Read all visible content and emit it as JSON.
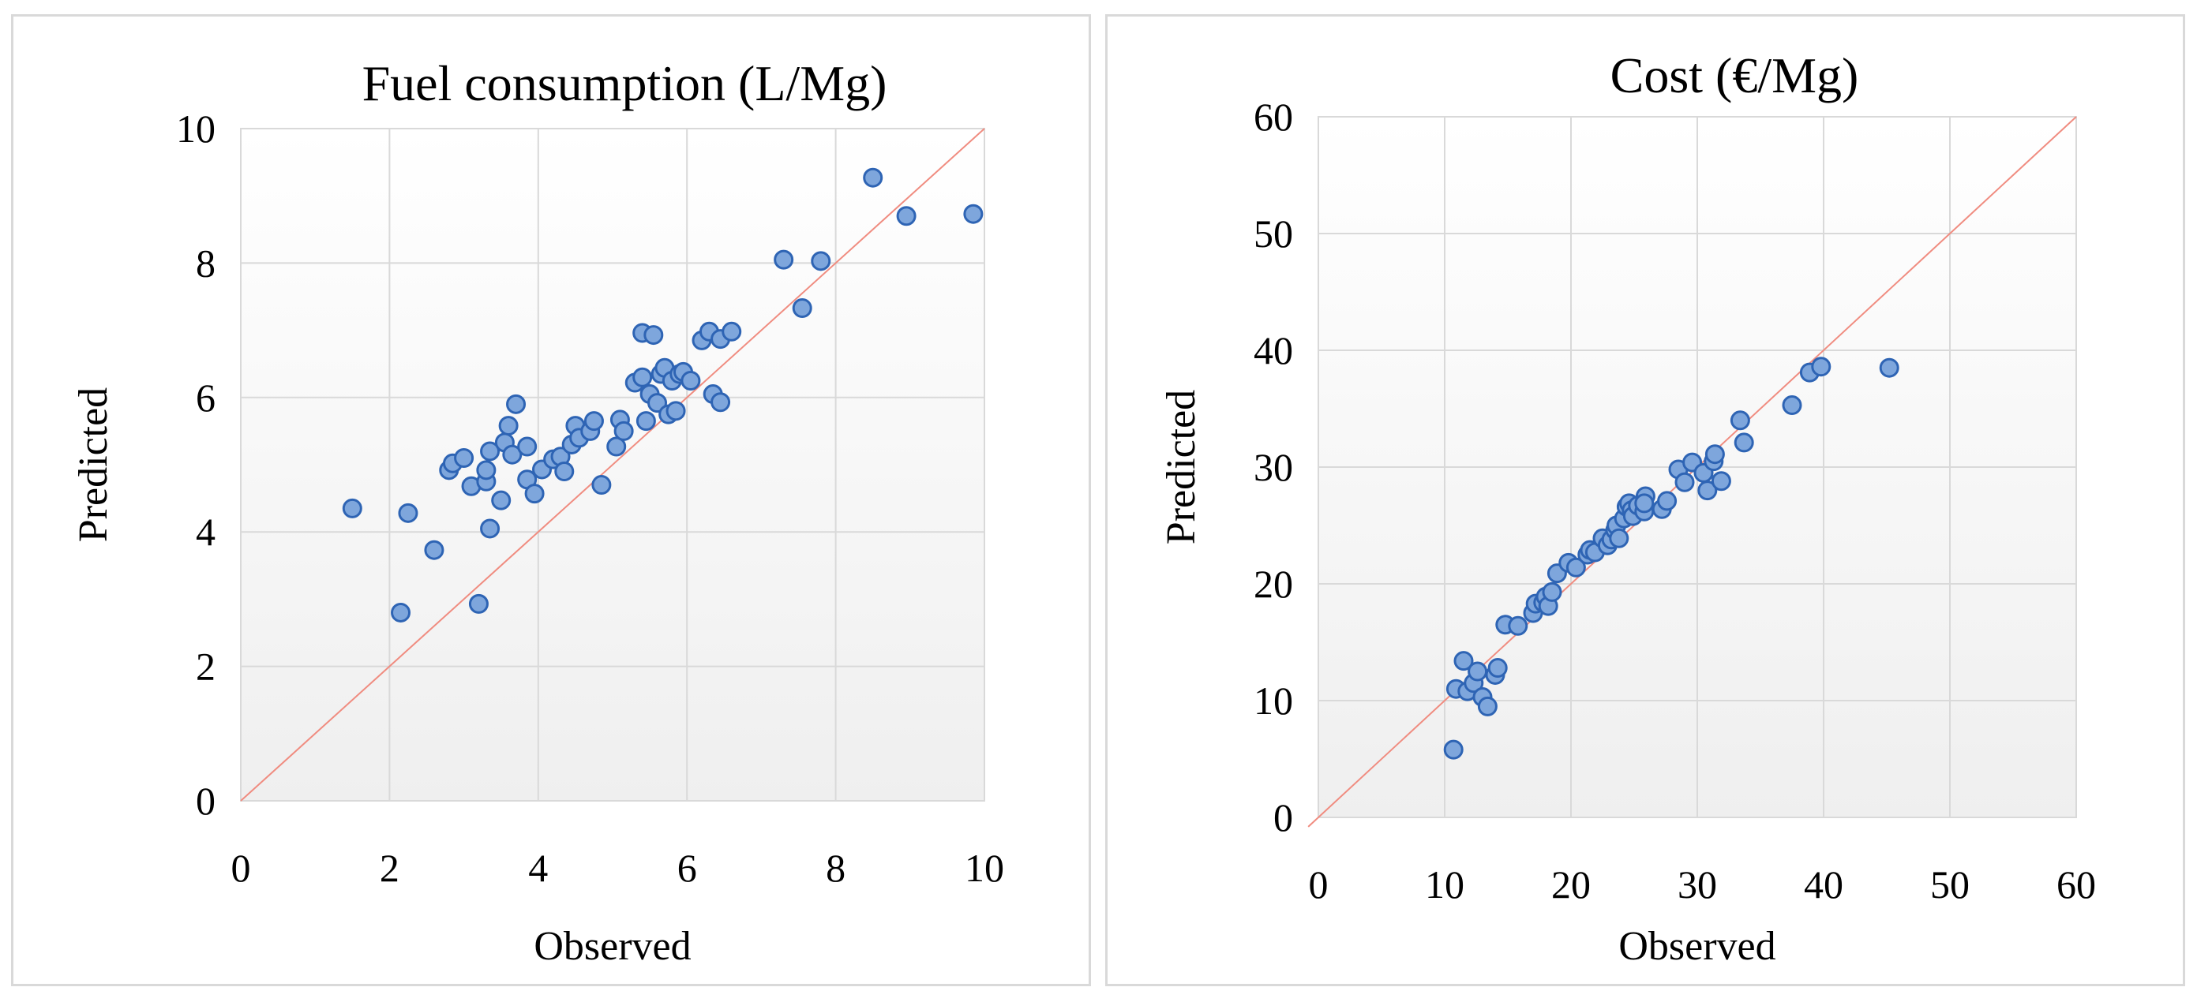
{
  "colors": {
    "point_fill": "#7ea6dc",
    "point_stroke": "#2e64b4",
    "identity_line": "#f08c80",
    "grid": "#d9d9d9"
  },
  "chart_data": [
    {
      "type": "scatter",
      "title": "Fuel consumption (L/Mg)",
      "xlabel": "Observed",
      "ylabel": "Predicted",
      "xlim": [
        0,
        10
      ],
      "ylim": [
        0,
        10
      ],
      "xticks": [
        "0",
        "2",
        "4",
        "6",
        "8",
        "10"
      ],
      "yticks": [
        "0",
        "2",
        "4",
        "6",
        "8",
        "10"
      ],
      "grid": true,
      "reference_line": "y = x",
      "points": [
        [
          1.5,
          4.35
        ],
        [
          2.15,
          2.8
        ],
        [
          2.25,
          4.28
        ],
        [
          2.6,
          3.73
        ],
        [
          2.8,
          4.92
        ],
        [
          2.85,
          5.02
        ],
        [
          3.0,
          5.1
        ],
        [
          3.1,
          4.68
        ],
        [
          3.2,
          2.93
        ],
        [
          3.3,
          4.75
        ],
        [
          3.3,
          4.92
        ],
        [
          3.35,
          4.05
        ],
        [
          3.35,
          5.2
        ],
        [
          3.5,
          4.47
        ],
        [
          3.55,
          5.33
        ],
        [
          3.6,
          5.58
        ],
        [
          3.65,
          5.15
        ],
        [
          3.7,
          5.9
        ],
        [
          3.85,
          4.78
        ],
        [
          3.85,
          5.27
        ],
        [
          3.95,
          4.57
        ],
        [
          4.05,
          4.93
        ],
        [
          4.2,
          5.08
        ],
        [
          4.3,
          5.12
        ],
        [
          4.35,
          4.9
        ],
        [
          4.45,
          5.3
        ],
        [
          4.5,
          5.58
        ],
        [
          4.55,
          5.4
        ],
        [
          4.7,
          5.5
        ],
        [
          4.75,
          5.65
        ],
        [
          4.85,
          4.7
        ],
        [
          5.05,
          5.27
        ],
        [
          5.1,
          5.67
        ],
        [
          5.15,
          5.5
        ],
        [
          5.3,
          6.22
        ],
        [
          5.4,
          6.3
        ],
        [
          5.4,
          6.96
        ],
        [
          5.45,
          5.65
        ],
        [
          5.5,
          6.05
        ],
        [
          5.55,
          6.93
        ],
        [
          5.6,
          5.92
        ],
        [
          5.65,
          6.35
        ],
        [
          5.7,
          6.44
        ],
        [
          5.75,
          5.75
        ],
        [
          5.8,
          6.25
        ],
        [
          5.85,
          5.8
        ],
        [
          5.9,
          6.35
        ],
        [
          5.95,
          6.38
        ],
        [
          6.05,
          6.25
        ],
        [
          6.2,
          6.85
        ],
        [
          6.3,
          6.98
        ],
        [
          6.35,
          6.05
        ],
        [
          6.45,
          6.87
        ],
        [
          6.45,
          5.93
        ],
        [
          6.6,
          6.98
        ],
        [
          7.3,
          8.05
        ],
        [
          7.55,
          7.33
        ],
        [
          7.8,
          8.03
        ],
        [
          8.5,
          9.27
        ],
        [
          8.95,
          8.7
        ],
        [
          9.85,
          8.73
        ]
      ]
    },
    {
      "type": "scatter",
      "title": "Cost (€/Mg)",
      "xlabel": "Observed",
      "ylabel": "Predicted",
      "xlim": [
        0,
        60
      ],
      "ylim": [
        0,
        60
      ],
      "xticks": [
        "0",
        "10",
        "20",
        "30",
        "40",
        "50",
        "60"
      ],
      "yticks": [
        "0",
        "10",
        "20",
        "30",
        "40",
        "50",
        "60"
      ],
      "grid": true,
      "reference_line": "y = x",
      "points": [
        [
          10.7,
          5.8
        ],
        [
          10.9,
          11.0
        ],
        [
          11.5,
          13.4
        ],
        [
          11.8,
          10.8
        ],
        [
          12.3,
          11.5
        ],
        [
          12.6,
          12.5
        ],
        [
          13.0,
          10.3
        ],
        [
          13.4,
          9.5
        ],
        [
          14.0,
          12.2
        ],
        [
          14.2,
          12.8
        ],
        [
          14.8,
          16.5
        ],
        [
          15.8,
          16.4
        ],
        [
          17.0,
          17.5
        ],
        [
          17.2,
          18.3
        ],
        [
          17.8,
          18.4
        ],
        [
          18.0,
          18.9
        ],
        [
          18.2,
          18.1
        ],
        [
          18.5,
          19.3
        ],
        [
          18.9,
          20.9
        ],
        [
          19.8,
          21.8
        ],
        [
          20.4,
          21.4
        ],
        [
          21.3,
          22.5
        ],
        [
          21.5,
          22.9
        ],
        [
          21.9,
          22.7
        ],
        [
          22.5,
          23.9
        ],
        [
          22.9,
          23.3
        ],
        [
          23.2,
          23.8
        ],
        [
          23.5,
          24.6
        ],
        [
          23.6,
          25.0
        ],
        [
          23.8,
          23.9
        ],
        [
          24.2,
          25.6
        ],
        [
          24.4,
          26.6
        ],
        [
          24.6,
          26.9
        ],
        [
          24.8,
          26.3
        ],
        [
          24.9,
          25.8
        ],
        [
          25.3,
          26.7
        ],
        [
          25.8,
          26.2
        ],
        [
          25.9,
          27.5
        ],
        [
          25.8,
          26.9
        ],
        [
          27.2,
          26.4
        ],
        [
          27.6,
          27.1
        ],
        [
          28.5,
          29.8
        ],
        [
          29.0,
          28.7
        ],
        [
          29.6,
          30.4
        ],
        [
          30.5,
          29.5
        ],
        [
          30.8,
          28.0
        ],
        [
          31.3,
          30.5
        ],
        [
          31.4,
          31.1
        ],
        [
          31.9,
          28.8
        ],
        [
          33.4,
          34.0
        ],
        [
          33.7,
          32.1
        ],
        [
          37.5,
          35.3
        ],
        [
          38.9,
          38.1
        ],
        [
          39.8,
          38.6
        ],
        [
          45.2,
          38.5
        ]
      ]
    }
  ]
}
